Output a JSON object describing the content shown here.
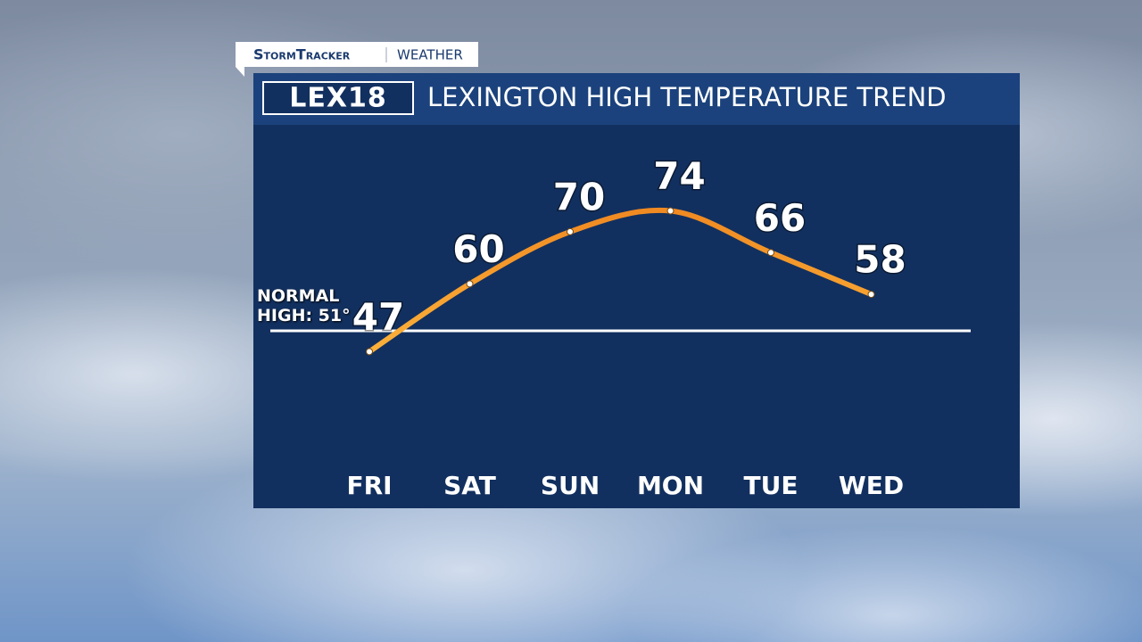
{
  "header": {
    "brand": "StormTracker",
    "section": "WEATHER"
  },
  "logo": "LEX18",
  "chart_data": {
    "type": "line",
    "title": "LEXINGTON HIGH TEMPERATURE TREND",
    "categories": [
      "FRI",
      "SAT",
      "SUN",
      "MON",
      "TUE",
      "WED"
    ],
    "values": [
      47,
      60,
      70,
      74,
      66,
      58
    ],
    "color": "#f39a2a",
    "ylim": [
      25,
      90
    ],
    "normal": {
      "label": "NORMAL HIGH: 51°",
      "value": 51
    }
  }
}
